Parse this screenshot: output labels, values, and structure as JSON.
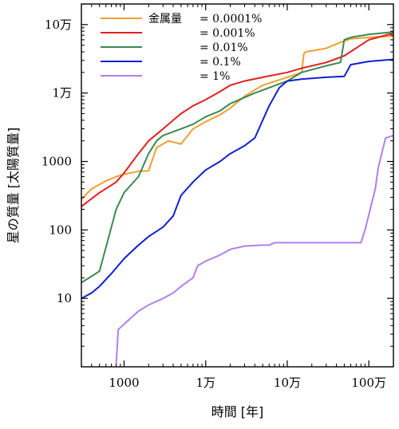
{
  "chart_data": {
    "type": "line",
    "title": "",
    "xlabel": "時間 [年]",
    "ylabel": "星の質量 [太陽質量]",
    "xscale": "log",
    "yscale": "log",
    "xlim": [
      300,
      2000000
    ],
    "ylim": [
      1,
      200000
    ],
    "xticks": [
      {
        "value": 1000,
        "label": "1000"
      },
      {
        "value": 10000,
        "label": "1万"
      },
      {
        "value": 100000,
        "label": "10万"
      },
      {
        "value": 1000000,
        "label": "100万"
      }
    ],
    "yticks": [
      {
        "value": 10,
        "label": "10"
      },
      {
        "value": 100,
        "label": "100"
      },
      {
        "value": 1000,
        "label": "1000"
      },
      {
        "value": 10000,
        "label": "1万"
      },
      {
        "value": 100000,
        "label": "10万"
      }
    ],
    "legend_title": "金属量",
    "legend_position": "top-left",
    "grid": false,
    "series": [
      {
        "name": "= 0.0001%",
        "color": "#f0a030",
        "x": [
          300,
          400,
          600,
          800,
          1000,
          1500,
          2000,
          2500,
          3500,
          5000,
          7000,
          10000,
          15000,
          20000,
          30000,
          50000,
          100000,
          150000,
          160000,
          170000,
          300000,
          450000,
          600000,
          1000000,
          2000000
        ],
        "y": [
          280,
          400,
          520,
          600,
          650,
          720,
          730,
          1600,
          2000,
          1800,
          3000,
          3800,
          4800,
          6000,
          9000,
          13000,
          17000,
          20000,
          38000,
          40000,
          45000,
          55000,
          62000,
          65000,
          68000
        ]
      },
      {
        "name": "= 0.001%",
        "color": "#e02020",
        "x": [
          300,
          500,
          800,
          1000,
          1500,
          2000,
          3000,
          4000,
          5000,
          7000,
          10000,
          15000,
          20000,
          30000,
          50000,
          100000,
          150000,
          300000,
          500000,
          1000000,
          2000000
        ],
        "y": [
          220,
          350,
          500,
          680,
          1300,
          2000,
          3000,
          4000,
          5000,
          6500,
          8000,
          10500,
          13000,
          15000,
          17000,
          20000,
          23000,
          28000,
          35000,
          60000,
          75000
        ]
      },
      {
        "name": "= 0.01%",
        "color": "#3a8a50",
        "x": [
          300,
          450,
          500,
          800,
          1000,
          1500,
          2000,
          2500,
          3000,
          5000,
          7000,
          10000,
          15000,
          20000,
          40000,
          100000,
          150000,
          300000,
          450000,
          500000,
          600000,
          1000000,
          2000000
        ],
        "y": [
          17,
          23,
          25,
          200,
          350,
          600,
          1300,
          2000,
          2400,
          3000,
          3500,
          4500,
          5500,
          7000,
          10000,
          15000,
          20000,
          25000,
          28000,
          60000,
          65000,
          72000,
          78000
        ]
      },
      {
        "name": "= 0.1%",
        "color": "#1020d0",
        "x": [
          300,
          400,
          500,
          700,
          1000,
          1500,
          2000,
          3000,
          4000,
          5000,
          7000,
          10000,
          15000,
          20000,
          30000,
          40000,
          50000,
          60000,
          80000,
          100000,
          150000,
          300000,
          500000,
          600000,
          1000000,
          2000000
        ],
        "y": [
          10,
          12,
          15,
          23,
          38,
          60,
          80,
          110,
          160,
          320,
          500,
          750,
          1000,
          1300,
          1700,
          2200,
          4000,
          6500,
          12000,
          15000,
          16000,
          17000,
          17500,
          26000,
          29000,
          31000
        ]
      },
      {
        "name": "= 1%",
        "color": "#b080f0",
        "x": [
          800,
          850,
          1000,
          1500,
          2000,
          3000,
          4000,
          5000,
          7000,
          8000,
          10000,
          15000,
          20000,
          30000,
          50000,
          60000,
          70000,
          100000,
          300000,
          800000,
          900000,
          1200000,
          1300000,
          1600000,
          2000000
        ],
        "y": [
          1.1,
          3.5,
          4.2,
          6.5,
          8,
          10,
          12,
          15,
          20,
          30,
          35,
          43,
          52,
          58,
          60,
          60,
          65,
          65,
          65,
          65,
          100,
          400,
          800,
          2200,
          2400
        ]
      }
    ]
  }
}
